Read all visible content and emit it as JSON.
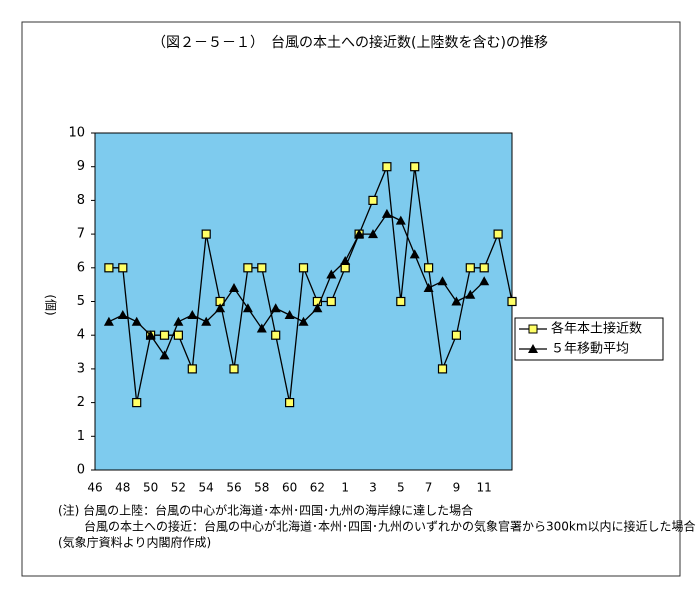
{
  "chart_data": {
    "type": "line",
    "title": "（図２－５－１）　台風の本土への接近数(上陸数を含む)の推移",
    "y_label": "(個)",
    "categories": [
      "46",
      null,
      "48",
      null,
      "50",
      null,
      "52",
      null,
      "54",
      null,
      "56",
      null,
      "58",
      null,
      "60",
      null,
      "62",
      null,
      "1",
      null,
      "3",
      null,
      "5",
      null,
      "7",
      null,
      "9",
      null,
      "11",
      null,
      null
    ],
    "series": [
      {
        "name": "各年本土接近数",
        "color": "#ffff66",
        "marker": "square",
        "values": [
          null,
          6,
          6,
          2,
          4,
          4,
          4,
          3,
          7,
          5,
          3,
          6,
          6,
          4,
          2,
          6,
          5,
          5,
          6,
          7,
          8,
          9,
          5,
          9,
          6,
          3,
          4,
          6,
          6,
          7,
          5
        ]
      },
      {
        "name": "５年移動平均",
        "color": "#000000",
        "marker": "triangle",
        "values": [
          null,
          4.4,
          4.6,
          4.4,
          4.0,
          3.4,
          4.4,
          4.6,
          4.4,
          4.8,
          5.4,
          4.8,
          4.2,
          4.8,
          4.6,
          4.4,
          4.8,
          5.8,
          6.2,
          7.0,
          7.0,
          7.6,
          7.4,
          6.4,
          5.4,
          5.6,
          5.0,
          5.2,
          5.6,
          null,
          null
        ]
      }
    ],
    "ylim": [
      0,
      10
    ],
    "yticks": [
      0,
      1,
      2,
      3,
      4,
      5,
      6,
      7,
      8,
      9,
      10
    ],
    "grid": false,
    "legend": "right",
    "background": "#7ecbee",
    "notes": [
      "(注) 台風の上陸：台風の中心が北海道･本州･四国･九州の海岸線に達した場合",
      "台風の本土への接近：台風の中心が北海道･本州･四国･九州のいずれかの気象官署から300km以内に接近した場合",
      "(気象庁資料より内閣府作成)"
    ]
  }
}
